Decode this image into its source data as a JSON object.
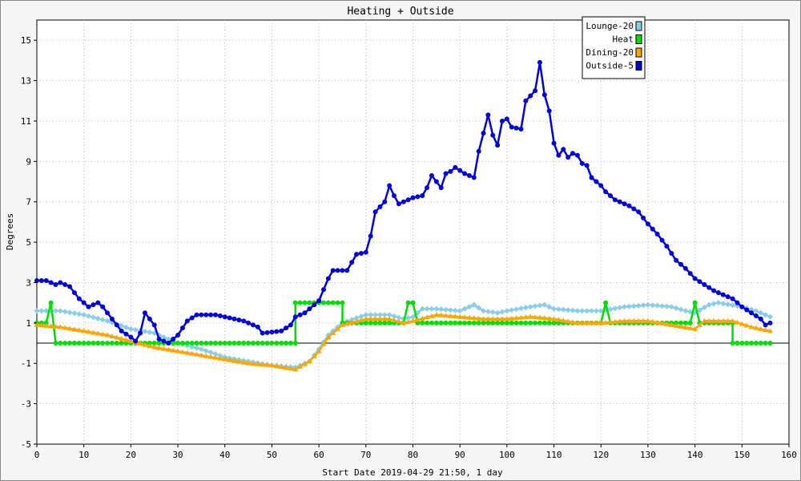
{
  "chart_data": {
    "type": "line",
    "title": "Heating + Outside",
    "xlabel": "Start Date 2019-04-29 21:50, 1 day",
    "ylabel": "Degrees",
    "xlim": [
      0,
      160
    ],
    "ylim": [
      -5,
      16
    ],
    "x_ticks": [
      0,
      10,
      20,
      30,
      40,
      50,
      60,
      70,
      80,
      90,
      100,
      110,
      120,
      130,
      140,
      150,
      160
    ],
    "y_ticks": [
      -5,
      -3,
      -1,
      1,
      3,
      5,
      7,
      9,
      11,
      13,
      15
    ],
    "grid": true,
    "legend_position": "top-right",
    "series": [
      {
        "name": "Lounge-20",
        "color": "#87ceeb",
        "marker": "diamond",
        "points": [
          [
            0,
            1.6
          ],
          [
            5,
            1.6
          ],
          [
            10,
            1.4
          ],
          [
            15,
            1.1
          ],
          [
            20,
            0.7
          ],
          [
            25,
            0.5
          ],
          [
            30,
            0.0
          ],
          [
            35,
            -0.3
          ],
          [
            40,
            -0.7
          ],
          [
            45,
            -0.9
          ],
          [
            50,
            -1.1
          ],
          [
            55,
            -1.2
          ],
          [
            58,
            -0.9
          ],
          [
            60,
            -0.3
          ],
          [
            62,
            0.4
          ],
          [
            65,
            1.0
          ],
          [
            70,
            1.4
          ],
          [
            75,
            1.4
          ],
          [
            78,
            1.2
          ],
          [
            80,
            1.3
          ],
          [
            82,
            1.7
          ],
          [
            85,
            1.7
          ],
          [
            90,
            1.6
          ],
          [
            93,
            1.9
          ],
          [
            95,
            1.6
          ],
          [
            98,
            1.5
          ],
          [
            100,
            1.6
          ],
          [
            105,
            1.8
          ],
          [
            108,
            1.9
          ],
          [
            110,
            1.7
          ],
          [
            115,
            1.6
          ],
          [
            120,
            1.6
          ],
          [
            125,
            1.8
          ],
          [
            130,
            1.9
          ],
          [
            135,
            1.8
          ],
          [
            138,
            1.6
          ],
          [
            140,
            1.5
          ],
          [
            143,
            1.9
          ],
          [
            145,
            2.0
          ],
          [
            150,
            1.8
          ],
          [
            153,
            1.6
          ],
          [
            156,
            1.3
          ]
        ]
      },
      {
        "name": "Heat",
        "color": "#00e000",
        "marker": "circle",
        "points": [
          [
            0,
            1.0
          ],
          [
            2,
            1.0
          ],
          [
            3,
            2.0
          ],
          [
            4,
            0.0
          ],
          [
            55,
            0.0
          ],
          [
            55,
            2.0
          ],
          [
            65,
            2.0
          ],
          [
            65,
            1.0
          ],
          [
            78,
            1.0
          ],
          [
            79,
            2.0
          ],
          [
            80,
            2.0
          ],
          [
            81,
            1.0
          ],
          [
            120,
            1.0
          ],
          [
            121,
            2.0
          ],
          [
            122,
            1.0
          ],
          [
            139,
            1.0
          ],
          [
            140,
            2.0
          ],
          [
            141,
            1.0
          ],
          [
            148,
            1.0
          ],
          [
            148,
            0.0
          ],
          [
            156,
            0.0
          ]
        ]
      },
      {
        "name": "Dining-20",
        "color": "#ffa500",
        "marker": "triangle",
        "points": [
          [
            0,
            0.9
          ],
          [
            5,
            0.8
          ],
          [
            10,
            0.6
          ],
          [
            15,
            0.4
          ],
          [
            20,
            0.1
          ],
          [
            25,
            -0.2
          ],
          [
            30,
            -0.4
          ],
          [
            35,
            -0.6
          ],
          [
            40,
            -0.8
          ],
          [
            45,
            -1.0
          ],
          [
            50,
            -1.1
          ],
          [
            55,
            -1.3
          ],
          [
            58,
            -0.9
          ],
          [
            60,
            -0.4
          ],
          [
            62,
            0.3
          ],
          [
            65,
            0.9
          ],
          [
            70,
            1.2
          ],
          [
            75,
            1.2
          ],
          [
            78,
            1.0
          ],
          [
            80,
            1.1
          ],
          [
            85,
            1.4
          ],
          [
            90,
            1.3
          ],
          [
            95,
            1.2
          ],
          [
            100,
            1.2
          ],
          [
            105,
            1.3
          ],
          [
            110,
            1.2
          ],
          [
            115,
            1.0
          ],
          [
            120,
            1.0
          ],
          [
            125,
            1.1
          ],
          [
            130,
            1.1
          ],
          [
            135,
            0.9
          ],
          [
            140,
            0.7
          ],
          [
            142,
            1.1
          ],
          [
            145,
            1.1
          ],
          [
            148,
            1.1
          ],
          [
            152,
            0.8
          ],
          [
            154,
            0.7
          ],
          [
            156,
            0.6
          ]
        ]
      },
      {
        "name": "Outside-5",
        "color": "#0000e0",
        "marker": "circle",
        "points": [
          [
            0,
            3.1
          ],
          [
            2,
            3.1
          ],
          [
            4,
            2.9
          ],
          [
            5,
            3.0
          ],
          [
            7,
            2.8
          ],
          [
            9,
            2.2
          ],
          [
            11,
            1.8
          ],
          [
            12,
            1.9
          ],
          [
            13,
            2.0
          ],
          [
            14,
            1.8
          ],
          [
            16,
            1.2
          ],
          [
            18,
            0.6
          ],
          [
            20,
            0.3
          ],
          [
            21,
            0.1
          ],
          [
            22,
            0.5
          ],
          [
            23,
            1.5
          ],
          [
            25,
            0.9
          ],
          [
            26,
            0.2
          ],
          [
            28,
            0.0
          ],
          [
            30,
            0.4
          ],
          [
            32,
            1.1
          ],
          [
            34,
            1.4
          ],
          [
            38,
            1.4
          ],
          [
            40,
            1.3
          ],
          [
            44,
            1.1
          ],
          [
            47,
            0.8
          ],
          [
            48,
            0.5
          ],
          [
            52,
            0.6
          ],
          [
            54,
            0.9
          ],
          [
            55,
            1.3
          ],
          [
            57,
            1.5
          ],
          [
            60,
            2.1
          ],
          [
            62,
            3.2
          ],
          [
            63,
            3.6
          ],
          [
            66,
            3.6
          ],
          [
            68,
            4.4
          ],
          [
            70,
            4.5
          ],
          [
            71,
            5.3
          ],
          [
            72,
            6.5
          ],
          [
            74,
            7.0
          ],
          [
            75,
            7.8
          ],
          [
            76,
            7.3
          ],
          [
            77,
            6.9
          ],
          [
            80,
            7.2
          ],
          [
            82,
            7.3
          ],
          [
            83,
            7.7
          ],
          [
            84,
            8.3
          ],
          [
            86,
            7.7
          ],
          [
            87,
            8.4
          ],
          [
            88,
            8.5
          ],
          [
            89,
            8.7
          ],
          [
            91,
            8.4
          ],
          [
            93,
            8.2
          ],
          [
            94,
            9.5
          ],
          [
            96,
            11.3
          ],
          [
            97,
            10.3
          ],
          [
            98,
            9.8
          ],
          [
            99,
            11.0
          ],
          [
            100,
            11.1
          ],
          [
            101,
            10.7
          ],
          [
            103,
            10.6
          ],
          [
            104,
            12.0
          ],
          [
            106,
            12.5
          ],
          [
            107,
            13.9
          ],
          [
            108,
            12.3
          ],
          [
            109,
            11.5
          ],
          [
            110,
            9.9
          ],
          [
            111,
            9.3
          ],
          [
            112,
            9.6
          ],
          [
            113,
            9.2
          ],
          [
            114,
            9.4
          ],
          [
            115,
            9.3
          ],
          [
            116,
            8.9
          ],
          [
            117,
            8.8
          ],
          [
            118,
            8.2
          ],
          [
            120,
            7.8
          ],
          [
            121,
            7.5
          ],
          [
            123,
            7.1
          ],
          [
            125,
            6.9
          ],
          [
            126,
            6.8
          ],
          [
            128,
            6.5
          ],
          [
            130,
            5.9
          ],
          [
            132,
            5.4
          ],
          [
            134,
            4.8
          ],
          [
            136,
            4.1
          ],
          [
            138,
            3.7
          ],
          [
            140,
            3.2
          ],
          [
            142,
            2.9
          ],
          [
            144,
            2.6
          ],
          [
            146,
            2.4
          ],
          [
            148,
            2.2
          ],
          [
            150,
            1.8
          ],
          [
            152,
            1.5
          ],
          [
            154,
            1.2
          ],
          [
            155,
            0.9
          ],
          [
            156,
            1.0
          ]
        ]
      }
    ]
  }
}
